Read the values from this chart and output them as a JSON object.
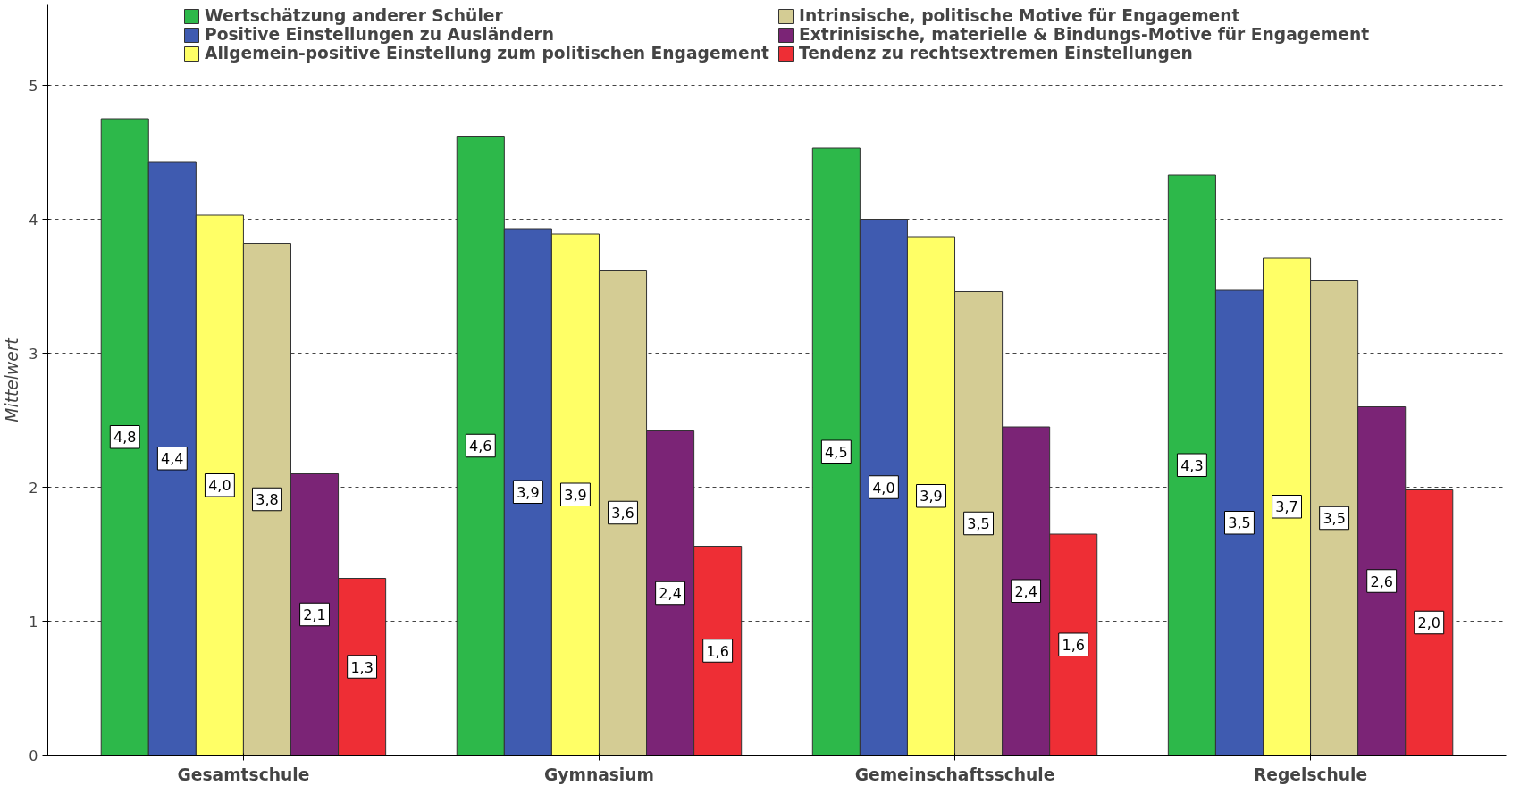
{
  "chart_data": {
    "type": "bar",
    "ylabel": "Mittelwert",
    "categories": [
      "Gesamtschule",
      "Gymnasium",
      "Gemeinschaftsschule",
      "Regelschule"
    ],
    "series": [
      {
        "name": "Wertschätzung anderer Schüler",
        "color": "#2db84a",
        "values": [
          4.75,
          4.62,
          4.53,
          4.33
        ],
        "value_labels": [
          "4,8",
          "4,6",
          "4,5",
          "4,3"
        ]
      },
      {
        "name": "Positive Einstellungen zu Ausländern",
        "color": "#3f5bb0",
        "values": [
          4.43,
          3.93,
          4.0,
          3.47
        ],
        "value_labels": [
          "4,4",
          "3,9",
          "4,0",
          "3,5"
        ]
      },
      {
        "name": "Allgemein-positive Einstellung zum politischen Engagement",
        "color": "#ffff66",
        "values": [
          4.03,
          3.89,
          3.87,
          3.71
        ],
        "value_labels": [
          "4,0",
          "3,9",
          "3,9",
          "3,7"
        ]
      },
      {
        "name": "Intrinsische, politische Motive für Engagement",
        "color": "#d4cc94",
        "values": [
          3.82,
          3.62,
          3.46,
          3.54
        ],
        "value_labels": [
          "3,8",
          "3,6",
          "3,5",
          "3,5"
        ]
      },
      {
        "name": "Extrinisische, materielle & Bindungs-Motive für Engagement",
        "color": "#7b2476",
        "values": [
          2.1,
          2.42,
          2.45,
          2.6
        ],
        "value_labels": [
          "2,1",
          "2,4",
          "2,4",
          "2,6"
        ]
      },
      {
        "name": "Tendenz zu rechtsextremen Einstellungen",
        "color": "#ee2e35",
        "values": [
          1.32,
          1.56,
          1.65,
          1.98
        ],
        "value_labels": [
          "1,3",
          "1,6",
          "1,6",
          "2,0"
        ]
      }
    ],
    "ylim": [
      0,
      5.6
    ],
    "yticks": [
      0,
      1,
      2,
      3,
      4,
      5
    ],
    "grid": "y",
    "legend": "top"
  }
}
